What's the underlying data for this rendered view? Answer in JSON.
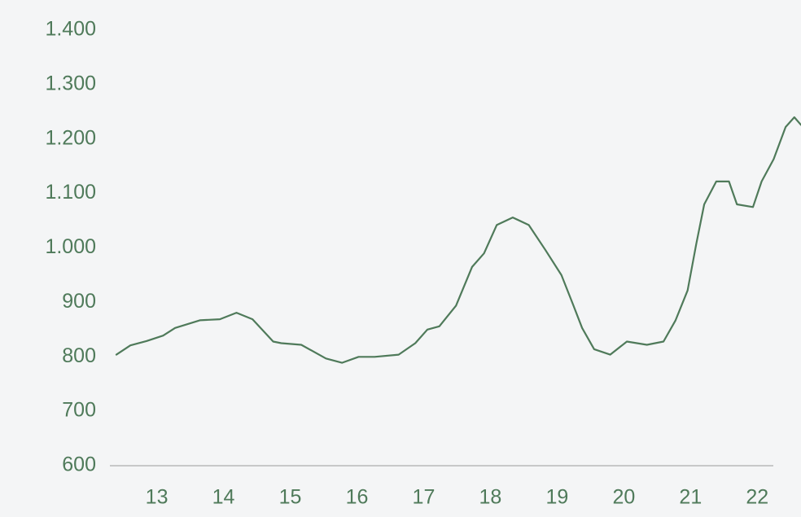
{
  "chart_data": {
    "type": "line",
    "x": [
      12.7,
      12.91,
      13.15,
      13.4,
      13.58,
      13.95,
      14.25,
      14.5,
      14.74,
      15.05,
      15.17,
      15.47,
      15.84,
      16.08,
      16.33,
      16.57,
      16.93,
      17.18,
      17.36,
      17.54,
      17.79,
      18.03,
      18.21,
      18.4,
      18.64,
      18.88,
      19.13,
      19.37,
      19.55,
      19.68,
      19.86,
      20.1,
      20.35,
      20.65,
      20.9,
      21.08,
      21.26,
      21.39,
      21.51,
      21.69,
      21.88,
      22.0,
      22.24,
      22.37,
      22.55,
      22.73,
      22.86,
      22.96
    ],
    "values": [
      804,
      821,
      829,
      839,
      853,
      867,
      869,
      881,
      869,
      828,
      825,
      822,
      797,
      789,
      800,
      800,
      804,
      825,
      850,
      856,
      894,
      965,
      990,
      1042,
      1056,
      1042,
      996,
      950,
      894,
      853,
      814,
      804,
      828,
      822,
      828,
      867,
      922,
      1007,
      1080,
      1122,
      1122,
      1080,
      1075,
      1122,
      1163,
      1222,
      1240,
      1226
    ],
    "color": "#4f7a5a",
    "xlim": [
      12.7,
      22.96
    ],
    "xticks": [
      13,
      14,
      15,
      16,
      17,
      18,
      19,
      20,
      21,
      22
    ],
    "ylim": [
      600,
      1400
    ],
    "yticks": [
      600,
      700,
      800,
      900,
      {
        "value": 1000,
        "label": "1.000"
      },
      {
        "value": 1100,
        "label": "1.100"
      },
      {
        "value": 1200,
        "label": "1.200"
      },
      {
        "value": 1300,
        "label": "1.300"
      },
      {
        "value": 1400,
        "label": "1.400"
      }
    ],
    "grid": false
  }
}
